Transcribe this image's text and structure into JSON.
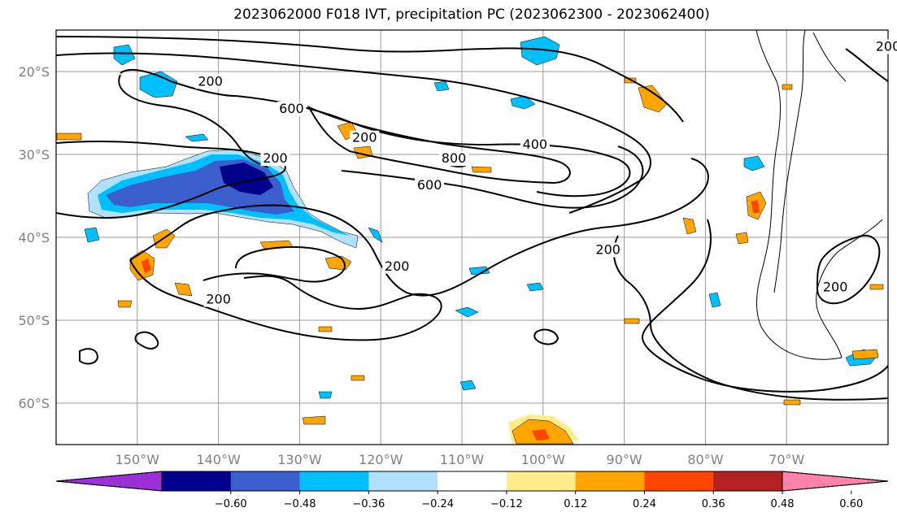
{
  "title": "2023062000 F018 IVT, precipitation PC (2023062300 - 2023062400)",
  "map": {
    "lat_labels": [
      "20°S",
      "30°S",
      "40°S",
      "50°S",
      "60°S"
    ],
    "lon_labels": [
      "150°W",
      "140°W",
      "130°W",
      "120°W",
      "110°W",
      "100°W",
      "90°W",
      "80°W",
      "70°W"
    ],
    "lon_range": [
      -160,
      -57.5
    ],
    "lat_range": [
      -65,
      -15
    ],
    "contour_labels": [
      {
        "text": "200",
        "lon": -141,
        "lat": -21.7
      },
      {
        "text": "200",
        "lon": -122,
        "lat": -28.5
      },
      {
        "text": "600",
        "lon": -131,
        "lat": -25.0
      },
      {
        "text": "800",
        "lon": -111,
        "lat": -31.0
      },
      {
        "text": "400",
        "lon": -101,
        "lat": -29.3
      },
      {
        "text": "600",
        "lon": -114,
        "lat": -34.2
      },
      {
        "text": "200",
        "lon": -133,
        "lat": -31.0
      },
      {
        "text": "200",
        "lon": -118,
        "lat": -44.0
      },
      {
        "text": "200",
        "lon": -140,
        "lat": -48.0
      },
      {
        "text": "200",
        "lon": -92,
        "lat": -42.0
      },
      {
        "text": "200",
        "lon": -64,
        "lat": -46.5
      },
      {
        "text": "200",
        "lon": -57.5,
        "lat": -17.5
      }
    ]
  },
  "colorbar": {
    "ticks": [
      "−0.60",
      "−0.48",
      "−0.36",
      "−0.24",
      "−0.12",
      "0.12",
      "0.24",
      "0.36",
      "0.48",
      "0.60"
    ],
    "colors": [
      "#9b30d9",
      "#00008b",
      "#3a5fcd",
      "#00bfff",
      "#b0e2ff",
      "#ffffff",
      "#ffec8b",
      "#ffa500",
      "#ff4500",
      "#b22222",
      "#ff82ab"
    ]
  },
  "fill_colors": {
    "neg_light": "#b0e2ff",
    "neg_mid": "#00bfff",
    "neg_strong": "#3a5fcd",
    "neg_max": "#00008b",
    "pos_light": "#ffec8b",
    "pos_mid": "#ffa500",
    "pos_strong": "#ff4500"
  }
}
